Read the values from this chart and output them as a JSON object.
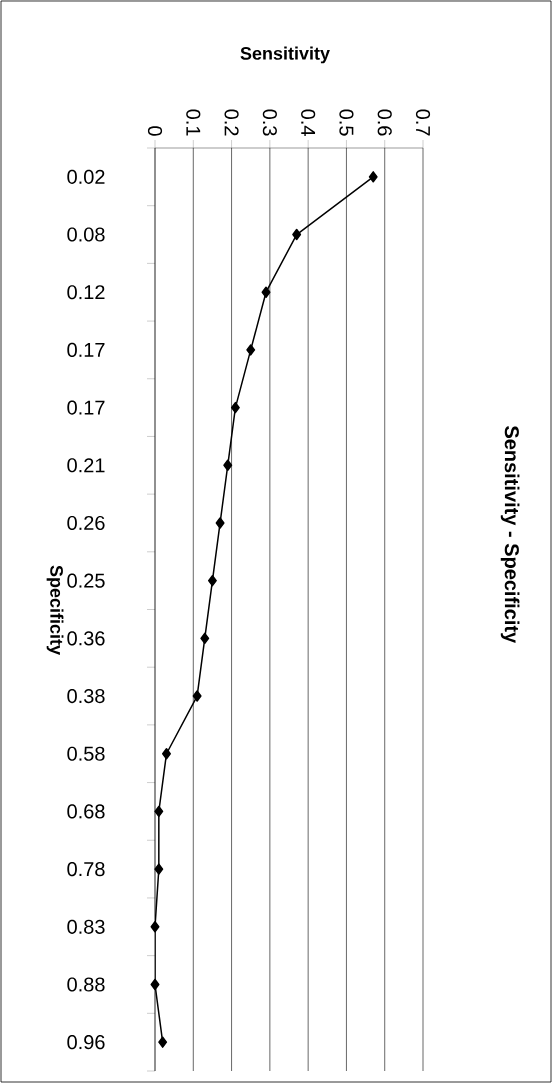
{
  "chart_data": {
    "type": "line",
    "orientation": "horizontal",
    "title": "Sensitivity - Specificity",
    "xlabel": "Sensitivity",
    "ylabel": "Specificity",
    "categories": [
      "0.02",
      "0.08",
      "0.12",
      "0.17",
      "0.17",
      "0.21",
      "0.26",
      "0.25",
      "0.36",
      "0.38",
      "0.58",
      "0.68",
      "0.78",
      "0.83",
      "0.88",
      "0.96"
    ],
    "values": [
      0.57,
      0.37,
      0.29,
      0.25,
      0.21,
      0.19,
      0.17,
      0.15,
      0.13,
      0.11,
      0.03,
      0.01,
      0.01,
      0.0,
      0.0,
      0.02
    ],
    "color": "#000000",
    "xlim": [
      0,
      0.7
    ],
    "xticks": [
      0,
      0.1,
      0.2,
      0.3,
      0.4,
      0.5,
      0.6,
      0.7
    ],
    "grid": "x",
    "marker": "diamond"
  }
}
